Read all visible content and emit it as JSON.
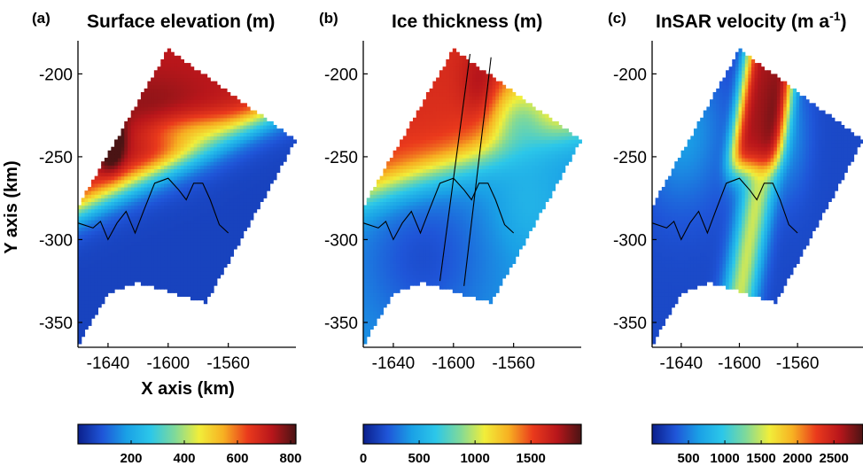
{
  "colors": {
    "colormap": [
      "#0b1f8c",
      "#1f55d8",
      "#1aa0e6",
      "#2cc7e9",
      "#7fd99a",
      "#f1ee3a",
      "#f7b022",
      "#ea3a1c",
      "#b8161b",
      "#4a1414"
    ],
    "grounding_line": "#000000"
  },
  "chart_data": [
    {
      "type": "heatmap",
      "panel_label": "(a)",
      "title": "Surface elevation (m)",
      "xlabel": "X axis (km)",
      "ylabel": "Y axis (km)",
      "x_ticks": [
        -1640,
        -1600,
        -1560
      ],
      "y_ticks": [
        -200,
        -250,
        -300,
        -350
      ],
      "xlim": [
        -1660,
        -1515
      ],
      "ylim": [
        -365,
        -180
      ],
      "colorbar": {
        "ticks": [
          200,
          400,
          600,
          800
        ],
        "range": [
          0,
          820
        ]
      },
      "domain_polygon": [
        [
          -1660,
          -280
        ],
        [
          -1600,
          -185
        ],
        [
          -1515,
          -240
        ],
        [
          -1575,
          -338
        ],
        [
          -1620,
          -326
        ],
        [
          -1640,
          -332
        ],
        [
          -1648,
          -345
        ],
        [
          -1655,
          -355
        ],
        [
          -1660,
          -365
        ]
      ],
      "field": {
        "base": 60,
        "north_value": 720,
        "front_y": -255,
        "width_km": 22
      },
      "grounding_line": [
        [
          -1660,
          -290
        ],
        [
          -1650,
          -293
        ],
        [
          -1645,
          -289
        ],
        [
          -1640,
          -300
        ],
        [
          -1634,
          -290
        ],
        [
          -1628,
          -283
        ],
        [
          -1622,
          -296
        ],
        [
          -1616,
          -282
        ],
        [
          -1609,
          -266
        ],
        [
          -1600,
          -263
        ],
        [
          -1593,
          -270
        ],
        [
          -1588,
          -276
        ],
        [
          -1583,
          -266
        ],
        [
          -1577,
          -266
        ],
        [
          -1572,
          -276
        ],
        [
          -1566,
          -291
        ],
        [
          -1560,
          -296
        ]
      ]
    },
    {
      "type": "heatmap",
      "panel_label": "(b)",
      "title": "Ice thickness (m)",
      "x_ticks": [
        -1640,
        -1600,
        -1560
      ],
      "y_ticks": [
        -200,
        -250,
        -300,
        -350
      ],
      "xlim": [
        -1660,
        -1515
      ],
      "ylim": [
        -365,
        -180
      ],
      "colorbar": {
        "ticks": [
          0,
          500,
          1000,
          1500
        ],
        "range": [
          0,
          1950
        ]
      },
      "domain_polygon": [
        [
          -1660,
          -280
        ],
        [
          -1600,
          -185
        ],
        [
          -1515,
          -240
        ],
        [
          -1575,
          -338
        ],
        [
          -1620,
          -326
        ],
        [
          -1640,
          -332
        ],
        [
          -1648,
          -345
        ],
        [
          -1655,
          -355
        ],
        [
          -1660,
          -365
        ]
      ],
      "field": {
        "base": 420,
        "north_value": 1600,
        "front_y": -255,
        "width_km": 22
      },
      "flowlines": [
        [
          [
            -1589,
            -188
          ],
          [
            -1609,
            -325
          ]
        ],
        [
          [
            -1575,
            -190
          ],
          [
            -1593,
            -328
          ]
        ]
      ],
      "grounding_line": [
        [
          -1660,
          -290
        ],
        [
          -1650,
          -293
        ],
        [
          -1645,
          -289
        ],
        [
          -1640,
          -300
        ],
        [
          -1634,
          -290
        ],
        [
          -1628,
          -283
        ],
        [
          -1622,
          -296
        ],
        [
          -1616,
          -282
        ],
        [
          -1609,
          -266
        ],
        [
          -1600,
          -263
        ],
        [
          -1593,
          -270
        ],
        [
          -1588,
          -276
        ],
        [
          -1583,
          -266
        ],
        [
          -1577,
          -266
        ],
        [
          -1572,
          -276
        ],
        [
          -1566,
          -291
        ],
        [
          -1560,
          -296
        ]
      ]
    },
    {
      "type": "heatmap",
      "panel_label": "(c)",
      "title": "InSAR velocity (m a",
      "title_superscript": "-1",
      "title_suffix": ")",
      "x_ticks": [
        -1640,
        -1600,
        -1560
      ],
      "y_ticks": [
        -200,
        -250,
        -300,
        -350
      ],
      "xlim": [
        -1660,
        -1515
      ],
      "ylim": [
        -365,
        -180
      ],
      "colorbar": {
        "ticks": [
          500,
          1000,
          1500,
          2000,
          2500
        ],
        "range": [
          0,
          2900
        ]
      },
      "domain_polygon": [
        [
          -1660,
          -280
        ],
        [
          -1600,
          -185
        ],
        [
          -1515,
          -240
        ],
        [
          -1575,
          -338
        ],
        [
          -1620,
          -326
        ],
        [
          -1640,
          -332
        ],
        [
          -1648,
          -345
        ],
        [
          -1655,
          -355
        ],
        [
          -1660,
          -365
        ]
      ],
      "field": {
        "base": 250,
        "stream_peak": 2600,
        "stream_x_at_-300": -1598,
        "stream_x_at_-200": -1580,
        "stream_half_width_km": 18
      },
      "grounding_line": [
        [
          -1660,
          -290
        ],
        [
          -1650,
          -293
        ],
        [
          -1645,
          -289
        ],
        [
          -1640,
          -300
        ],
        [
          -1634,
          -290
        ],
        [
          -1628,
          -283
        ],
        [
          -1622,
          -296
        ],
        [
          -1616,
          -282
        ],
        [
          -1609,
          -266
        ],
        [
          -1600,
          -263
        ],
        [
          -1593,
          -270
        ],
        [
          -1588,
          -276
        ],
        [
          -1583,
          -266
        ],
        [
          -1577,
          -266
        ],
        [
          -1572,
          -276
        ],
        [
          -1566,
          -291
        ],
        [
          -1560,
          -296
        ]
      ]
    }
  ]
}
